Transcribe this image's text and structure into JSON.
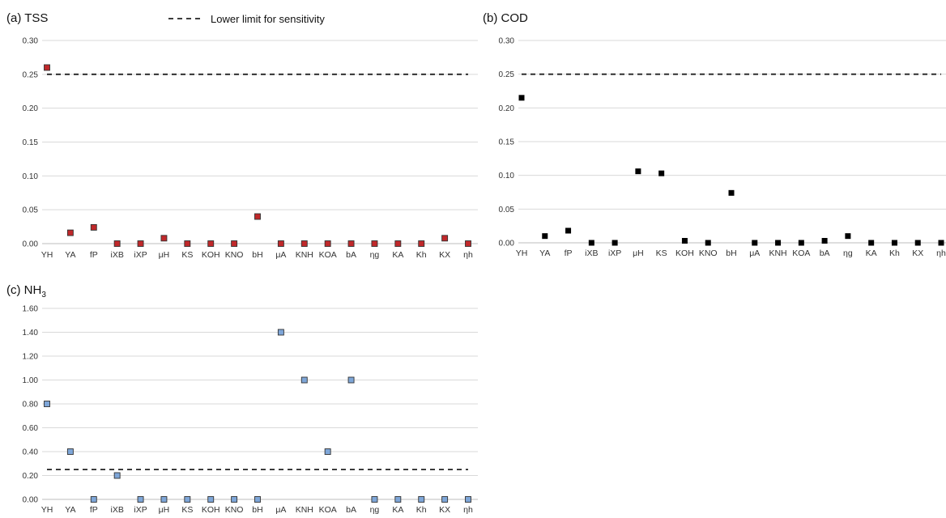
{
  "legend": {
    "label": "Lower limit for sensitivity",
    "style": "dashed black line"
  },
  "chart_data": [
    {
      "type": "scatter",
      "title": "(a) TSS",
      "categories": [
        "YH",
        "YA",
        "fP",
        "iXB",
        "iXP",
        "μH",
        "KS",
        "KOH",
        "KNO",
        "bH",
        "μA",
        "KNH",
        "KOA",
        "bA",
        "ηg",
        "KA",
        "Kh",
        "KX",
        "ηh"
      ],
      "series": [
        {
          "values": [
            0.26,
            0.016,
            0.024,
            0,
            0,
            0.008,
            0,
            0,
            0,
            0.04,
            0,
            0,
            0,
            0,
            0,
            0,
            0,
            0.008,
            0
          ]
        }
      ],
      "ylim": [
        0,
        0.3
      ],
      "yticks": [
        "0.00",
        "0.05",
        "0.10",
        "0.15",
        "0.20",
        "0.25",
        "0.30"
      ],
      "threshold": 0.25,
      "marker_color": "#c0282a",
      "grid": true
    },
    {
      "type": "scatter",
      "title": "(b) COD",
      "categories": [
        "YH",
        "YA",
        "fP",
        "iXB",
        "iXP",
        "μH",
        "KS",
        "KOH",
        "KNO",
        "bH",
        "μA",
        "KNH",
        "KOA",
        "bA",
        "ηg",
        "KA",
        "Kh",
        "KX",
        "ηh"
      ],
      "series": [
        {
          "values": [
            0.215,
            0.01,
            0.018,
            0,
            0,
            0.106,
            0.103,
            0.003,
            0,
            0.074,
            0,
            0,
            0,
            0.003,
            0.01,
            0,
            0,
            0,
            0
          ]
        }
      ],
      "ylim": [
        0,
        0.3
      ],
      "yticks": [
        "0.00",
        "0.05",
        "0.10",
        "0.15",
        "0.20",
        "0.25",
        "0.30"
      ],
      "threshold": 0.25,
      "marker_color": "#000000",
      "grid": true
    },
    {
      "type": "scatter",
      "title": "(c) NH3",
      "title_main": "(c) NH",
      "title_sub": "3",
      "categories": [
        "YH",
        "YA",
        "fP",
        "iXB",
        "iXP",
        "μH",
        "KS",
        "KOH",
        "KNO",
        "bH",
        "μA",
        "KNH",
        "KOA",
        "bA",
        "ηg",
        "KA",
        "Kh",
        "KX",
        "ηh"
      ],
      "series": [
        {
          "values": [
            0.8,
            0.4,
            0,
            0.2,
            0,
            0,
            0,
            0,
            0,
            0,
            1.4,
            1.0,
            0.4,
            1.0,
            0,
            0,
            0,
            0,
            0
          ]
        }
      ],
      "ylim": [
        0,
        1.6
      ],
      "yticks": [
        "0.00",
        "0.20",
        "0.40",
        "0.60",
        "0.80",
        "1.00",
        "1.20",
        "1.40",
        "1.60"
      ],
      "threshold": 0.25,
      "marker_color": "#7ea6d8",
      "grid": true
    }
  ]
}
